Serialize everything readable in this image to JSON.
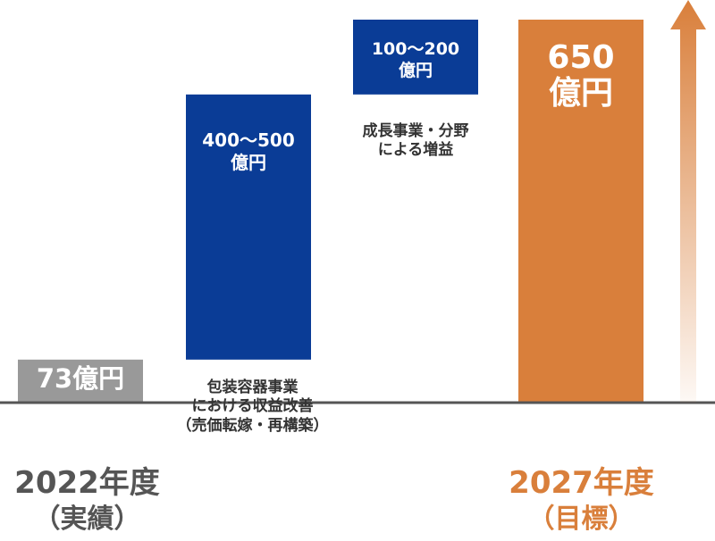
{
  "chart_data": {
    "type": "bar",
    "subtype": "waterfall",
    "unit": "億円",
    "categories": [
      "2022年度（実績）",
      "包装容器事業における収益改善（売価転嫁・再構築）",
      "成長事業・分野による増益",
      "2027年度（目標）"
    ],
    "bars": [
      {
        "label": "73億円",
        "value": 73,
        "base": 0,
        "color": "#999999"
      },
      {
        "label": "400〜500億円",
        "low": 400,
        "high": 500,
        "value": 450,
        "base": 73,
        "color": "#0a3c96"
      },
      {
        "label": "100〜200億円",
        "low": 100,
        "high": 200,
        "value": 127,
        "base": 523,
        "color": "#0a3c96"
      },
      {
        "label": "650億円",
        "value": 650,
        "base": 0,
        "color": "#d97f3b"
      }
    ],
    "notes": {
      "packaging_line1": "包装容器事業",
      "packaging_line2": "における収益改善",
      "packaging_line3": "（売価転嫁・再構築）",
      "growth_line1": "成長事業・分野",
      "growth_line2": "による増益"
    },
    "years": {
      "start_line1": "2022年度",
      "start_line2": "（実績）",
      "end_line1": "2027年度",
      "end_line2": "（目標）"
    },
    "colors": {
      "baseline": "#555555",
      "gray": "#999999",
      "navy": "#0a3c96",
      "orange": "#d97f3b",
      "year_gray": "#555555"
    },
    "ylim": [
      0,
      650
    ]
  }
}
